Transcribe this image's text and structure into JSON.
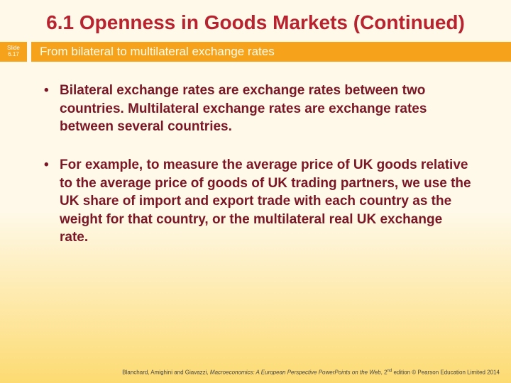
{
  "title": "6.1  Openness in Goods Markets (Continued)",
  "slideLabel": {
    "line1": "Slide",
    "line2": "6.17"
  },
  "subtitle": "From bilateral to multilateral exchange rates",
  "bullets": [
    "Bilateral exchange rates are exchange rates between two countries. Multilateral exchange rates are exchange rates between several countries.",
    "For example, to measure the average price of UK goods relative to the average price of goods of UK trading partners, we use the UK share of import and export trade with each country as the weight for that country, or the multilateral real UK exchange rate."
  ],
  "footer": {
    "authors": "Blanchard, Amighini and Giavazzi, ",
    "bookTitle": "Macroeconomics: A European Perspective PowerPoints on the Web",
    "edition": ", 2",
    "editionSup": "nd",
    "rest": " edition © Pearson Education Limited 2014"
  },
  "colors": {
    "titleColor": "#b8232f",
    "accent": "#f6a21b",
    "bulletColor": "#7a1625",
    "bgTop": "#fef9e9",
    "bgBottom": "#fddb72"
  }
}
